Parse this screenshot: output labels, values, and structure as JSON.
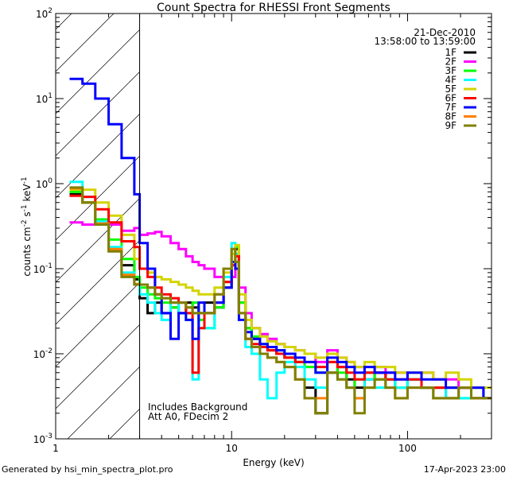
{
  "chart_data": {
    "type": "line",
    "title": "Count Spectra for RHESSI Front Segments",
    "xlabel": "Energy (keV)",
    "ylabel": "counts cm",
    "ylabel_parts": {
      "a": "counts cm",
      "b": "-2",
      "c": " s",
      "d": "-1",
      "e": " keV",
      "f": "-1"
    },
    "xscale": "log",
    "yscale": "log",
    "xlim": [
      1,
      300
    ],
    "ylim": [
      0.001,
      100
    ],
    "x_ticks": [
      {
        "v": 1,
        "label": "1"
      },
      {
        "v": 10,
        "label": "10"
      },
      {
        "v": 100,
        "label": "100"
      }
    ],
    "y_ticks": [
      {
        "v": 0.001,
        "base": "10",
        "exp": "-3"
      },
      {
        "v": 0.01,
        "base": "10",
        "exp": "-2"
      },
      {
        "v": 0.1,
        "base": "10",
        "exp": "-1"
      },
      {
        "v": 1,
        "base": "10",
        "exp": "0"
      },
      {
        "v": 10,
        "base": "10",
        "exp": "1"
      },
      {
        "v": 100,
        "base": "10",
        "exp": "2"
      }
    ],
    "excluded_region": [
      1,
      3
    ],
    "date": "21-Dec-2010",
    "time_range": "13:58:00 to 13:59:00",
    "annotations": [
      "Includes Background",
      "Att A0, FDecim 2"
    ],
    "legend_position": "top-right",
    "energy_edges": [
      1.2,
      1.42,
      1.68,
      2.0,
      2.37,
      2.8,
      3.0,
      3.33,
      3.67,
      4.0,
      4.5,
      5.0,
      5.5,
      6.0,
      6.5,
      7.0,
      8.0,
      9.0,
      10.0,
      10.5,
      11.0,
      12.0,
      13.0,
      14.5,
      16,
      18,
      20,
      23,
      26,
      30,
      35,
      40,
      45,
      50,
      57,
      65,
      75,
      85,
      100,
      120,
      140,
      165,
      195,
      230,
      270,
      300
    ],
    "series": [
      {
        "name": "1F",
        "color": "#000000",
        "values": [
          0.75,
          0.6,
          0.34,
          0.17,
          0.11,
          0.075,
          0.045,
          0.03,
          0.04,
          0.03,
          0.035,
          0.03,
          0.04,
          0.035,
          0.03,
          0.04,
          0.035,
          0.06,
          0.12,
          0.17,
          0.04,
          0.02,
          0.015,
          0.012,
          0.011,
          0.01,
          0.009,
          0.008,
          0.004,
          0.002,
          0.006,
          0.007,
          0.005,
          0.004,
          0.005,
          0.006,
          0.005,
          0.004,
          0.005,
          0.004,
          0.004,
          0.003,
          0.004,
          0.003,
          0.003
        ]
      },
      {
        "name": "2F",
        "color": "#ff00ff",
        "values": [
          0.35,
          0.33,
          0.33,
          0.33,
          0.28,
          0.3,
          0.25,
          0.26,
          0.27,
          0.24,
          0.2,
          0.17,
          0.14,
          0.12,
          0.11,
          0.1,
          0.08,
          0.07,
          0.08,
          0.1,
          0.06,
          0.03,
          0.02,
          0.017,
          0.015,
          0.013,
          0.012,
          0.011,
          0.01,
          0.008,
          0.011,
          0.009,
          0.008,
          0.007,
          0.006,
          0.007,
          0.006,
          0.006,
          0.005,
          0.006,
          0.005,
          0.005,
          0.004,
          0.004,
          0.003
        ]
      },
      {
        "name": "3F",
        "color": "#00ff00",
        "values": [
          0.8,
          0.6,
          0.38,
          0.22,
          0.13,
          0.08,
          0.06,
          0.05,
          0.045,
          0.04,
          0.035,
          0.04,
          0.03,
          0.04,
          0.025,
          0.02,
          0.035,
          0.07,
          0.15,
          0.18,
          0.04,
          0.02,
          0.016,
          0.013,
          0.012,
          0.011,
          0.009,
          0.008,
          0.007,
          0.006,
          0.008,
          0.006,
          0.004,
          0.005,
          0.006,
          0.005,
          0.005,
          0.004,
          0.005,
          0.004,
          0.004,
          0.004,
          0.003,
          0.004,
          0.003
        ]
      },
      {
        "name": "4F",
        "color": "#00ffff",
        "values": [
          1.05,
          0.7,
          0.36,
          0.18,
          0.09,
          0.065,
          0.05,
          0.04,
          0.03,
          0.025,
          0.04,
          0.03,
          0.025,
          0.005,
          0.03,
          0.02,
          0.04,
          0.08,
          0.2,
          0.15,
          0.03,
          0.012,
          0.01,
          0.005,
          0.003,
          0.006,
          0.008,
          0.007,
          0.005,
          0.004,
          0.006,
          0.005,
          0.004,
          0.003,
          0.005,
          0.004,
          0.005,
          0.004,
          0.005,
          0.004,
          0.003,
          0.004,
          0.003,
          0.003,
          0.003
        ]
      },
      {
        "name": "5F",
        "color": "#d4d400",
        "values": [
          0.85,
          0.85,
          0.6,
          0.42,
          0.25,
          0.13,
          0.1,
          0.09,
          0.08,
          0.075,
          0.07,
          0.065,
          0.06,
          0.055,
          0.05,
          0.05,
          0.06,
          0.09,
          0.15,
          0.19,
          0.05,
          0.025,
          0.02,
          0.016,
          0.014,
          0.013,
          0.012,
          0.011,
          0.01,
          0.009,
          0.01,
          0.009,
          0.008,
          0.007,
          0.008,
          0.007,
          0.007,
          0.006,
          0.006,
          0.006,
          0.005,
          0.006,
          0.005,
          0.004,
          0.004
        ]
      },
      {
        "name": "6F",
        "color": "#ff0000",
        "values": [
          0.72,
          0.7,
          0.5,
          0.35,
          0.21,
          0.18,
          0.1,
          0.08,
          0.06,
          0.05,
          0.045,
          0.04,
          0.03,
          0.006,
          0.02,
          0.03,
          0.04,
          0.07,
          0.11,
          0.14,
          0.03,
          0.015,
          0.013,
          0.012,
          0.011,
          0.01,
          0.009,
          0.008,
          0.008,
          0.007,
          0.008,
          0.007,
          0.006,
          0.005,
          0.006,
          0.006,
          0.005,
          0.005,
          0.005,
          0.004,
          0.004,
          0.004,
          0.004,
          0.003,
          0.003
        ]
      },
      {
        "name": "7F",
        "color": "#0000ff",
        "values": [
          17,
          15,
          10,
          5,
          2,
          0.75,
          0.2,
          0.1,
          0.05,
          0.03,
          0.015,
          0.03,
          0.025,
          0.015,
          0.04,
          0.03,
          0.04,
          0.06,
          0.12,
          0.1,
          0.025,
          0.018,
          0.015,
          0.013,
          0.012,
          0.011,
          0.01,
          0.009,
          0.008,
          0.006,
          0.009,
          0.008,
          0.007,
          0.006,
          0.007,
          0.006,
          0.006,
          0.005,
          0.006,
          0.005,
          0.005,
          0.004,
          0.004,
          0.004,
          0.003
        ]
      },
      {
        "name": "8F",
        "color": "#ff8000",
        "values": [
          0.88,
          0.6,
          0.34,
          0.17,
          0.085,
          0.066,
          0.065,
          0.06,
          0.05,
          0.045,
          0.04,
          0.04,
          0.035,
          0.03,
          0.03,
          0.03,
          0.05,
          0.1,
          0.17,
          0.12,
          0.03,
          0.015,
          0.012,
          0.01,
          0.009,
          0.008,
          0.007,
          0.005,
          0.003,
          0.003,
          0.006,
          0.005,
          0.004,
          0.003,
          0.004,
          0.005,
          0.004,
          0.003,
          0.004,
          0.004,
          0.003,
          0.003,
          0.004,
          0.003,
          0.003
        ]
      },
      {
        "name": "9F",
        "color": "#808000",
        "values": [
          0.9,
          0.6,
          0.33,
          0.16,
          0.08,
          0.065,
          0.065,
          0.06,
          0.05,
          0.045,
          0.04,
          0.04,
          0.035,
          0.03,
          0.03,
          0.03,
          0.05,
          0.1,
          0.17,
          0.12,
          0.03,
          0.015,
          0.012,
          0.01,
          0.009,
          0.008,
          0.007,
          0.005,
          0.003,
          0.002,
          0.006,
          0.005,
          0.004,
          0.002,
          0.004,
          0.005,
          0.004,
          0.003,
          0.004,
          0.004,
          0.003,
          0.003,
          0.004,
          0.003,
          0.003
        ]
      }
    ]
  },
  "footer": {
    "generated_by": "Generated by hsi_min_spectra_plot.pro",
    "timestamp": "17-Apr-2023 23:00"
  }
}
